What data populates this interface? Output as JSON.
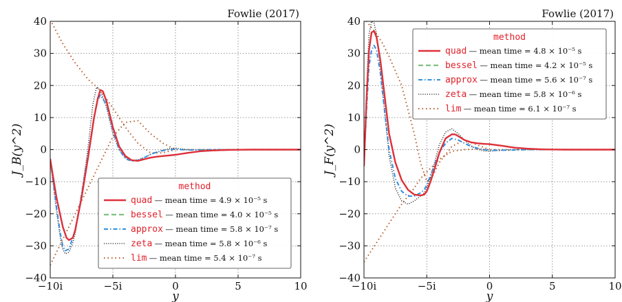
{
  "chart_data": [
    {
      "type": "line",
      "credit": "Fowlie (2017)",
      "xlabel": "y",
      "ylabel": "J_B(y^2)",
      "xlim": [
        -10,
        10
      ],
      "ylim": [
        -40,
        40
      ],
      "xtick_labels": [
        "−10i",
        "−5i",
        "0",
        "5",
        "10"
      ],
      "xtick_values": [
        -10,
        -5,
        0,
        5,
        10
      ],
      "ytick_values": [
        40,
        30,
        20,
        10,
        0,
        -10,
        -20,
        -30,
        -40
      ],
      "ytick_labels": [
        "40",
        "30",
        "20",
        "10",
        "0",
        "−10",
        "−20",
        "−30",
        "−40"
      ],
      "grid": true,
      "legend": {
        "title": "method",
        "placement": "lower-right",
        "entries": [
          {
            "name": "quad",
            "time_text": "— mean time = 4.9 × 10⁻⁵ s"
          },
          {
            "name": "bessel",
            "time_text": "— mean time = 4.0 × 10⁻⁵ s"
          },
          {
            "name": "approx",
            "time_text": "— mean time = 5.8 × 10⁻⁷ s"
          },
          {
            "name": "zeta",
            "time_text": "— mean time = 5.8 × 10⁻⁶ s"
          },
          {
            "name": "lim",
            "time_text": "— mean time = 5.4 × 10⁻⁷ s"
          }
        ]
      },
      "series": [
        {
          "name": "quad",
          "color": "#e0303a",
          "style": "solid",
          "x": [
            -10,
            -9.5,
            -9,
            -8.7,
            -8.5,
            -8.2,
            -8,
            -7.5,
            -7,
            -6.5,
            -6.2,
            -6,
            -5.8,
            -5.5,
            -5,
            -4.5,
            -4,
            -3.5,
            -3,
            -2.5,
            -2,
            -1.5,
            -1,
            -0.5,
            0,
            1,
            2,
            3,
            4,
            5,
            6,
            8,
            10
          ],
          "y": [
            -3,
            -15,
            -24,
            -27.5,
            -28.2,
            -27.5,
            -25,
            -15,
            -3,
            10,
            16,
            18.6,
            18.2,
            15,
            7,
            1,
            -2,
            -3.3,
            -3.5,
            -3,
            -2.5,
            -2.2,
            -2,
            -1.8,
            -1.6,
            -1,
            -0.5,
            -0.25,
            -0.1,
            -0.05,
            0,
            0,
            0
          ]
        },
        {
          "name": "bessel",
          "color": "#7fbf7f",
          "style": "dashed",
          "x": [
            -10,
            -9.5,
            -9,
            -8.7,
            -8.5,
            -8.2,
            -8,
            -7.5,
            -7,
            -6.5,
            -6.2,
            -6,
            -5.8,
            -5.5,
            -5,
            -4.5,
            -4,
            -3.5,
            -3,
            -2.5,
            -2,
            -1.5,
            -1,
            -0.5,
            0,
            1,
            2,
            3,
            4,
            5,
            6,
            8,
            10
          ],
          "y": [
            -3,
            -15,
            -24,
            -27.5,
            -28.2,
            -27.5,
            -25,
            -15,
            -3,
            10,
            16,
            18.6,
            18.2,
            15,
            7,
            1,
            -2,
            -3.3,
            -3.5,
            -3,
            -2.5,
            -2.2,
            -2,
            -1.8,
            -1.6,
            -1,
            -0.5,
            -0.25,
            -0.1,
            -0.05,
            0,
            0,
            0
          ]
        },
        {
          "name": "approx",
          "color": "#2f8fdf",
          "style": "dashdot",
          "x": [
            -10,
            -9.5,
            -9.2,
            -9,
            -8.8,
            -8.5,
            -8,
            -7.5,
            -7,
            -6.5,
            -6.2,
            -6,
            -5.5,
            -5,
            -4.5,
            -4,
            -3.5,
            -3,
            -2.5,
            -2,
            -1.5,
            -1,
            -0.5,
            0,
            0.5,
            1,
            2,
            3,
            5,
            7,
            10
          ],
          "y": [
            -3,
            -18,
            -26,
            -30,
            -31.5,
            -31,
            -25,
            -14,
            -2,
            10,
            15.5,
            17,
            14,
            6,
            0,
            -2.8,
            -3.6,
            -3.3,
            -2.5,
            -1.5,
            -0.8,
            -0.3,
            0,
            0.1,
            0,
            -0.1,
            -0.1,
            0,
            0,
            0,
            0
          ]
        },
        {
          "name": "zeta",
          "color": "#444444",
          "style": "dotted",
          "x": [
            -10,
            -9.5,
            -9.2,
            -9,
            -8.8,
            -8.5,
            -8.2,
            -8,
            -7.5,
            -7,
            -6.6,
            -6.3,
            -6,
            -5.5,
            -5,
            -4.5,
            -4,
            -3.5,
            -3,
            -2.5,
            -2,
            -1.5,
            -1,
            -0.5,
            0,
            0.5,
            1,
            2,
            3,
            5,
            7,
            10
          ],
          "y": [
            -3,
            -19,
            -27.5,
            -31,
            -32.5,
            -32,
            -29,
            -26,
            -14,
            0,
            14,
            19.5,
            18.5,
            13,
            5,
            0,
            -2.5,
            -3.3,
            -3.2,
            -2.5,
            -1.5,
            -0.8,
            -0.2,
            0.3,
            0.5,
            0.2,
            0,
            0,
            0,
            0,
            0,
            0
          ]
        },
        {
          "name": "lim",
          "color": "#b25a2a",
          "style": "loosedot",
          "x": [
            -10,
            -9,
            -8,
            -7,
            -6,
            -5.5,
            -5,
            -4,
            -3,
            -2,
            -1,
            0,
            1,
            2,
            3,
            5,
            7,
            10
          ],
          "y": [
            -36,
            -28,
            -20,
            -12,
            -4,
            0,
            4,
            8.5,
            9,
            5,
            2,
            0,
            0,
            0,
            0,
            0,
            0,
            0
          ],
          "x2": [
            -10,
            -9,
            -8,
            -7,
            -6,
            -5,
            -4,
            -3,
            -2,
            -1,
            0
          ],
          "y2": [
            40.5,
            33,
            27,
            22,
            18.5,
            13,
            7,
            2,
            -1,
            -1,
            0
          ]
        }
      ]
    },
    {
      "type": "line",
      "credit": "Fowlie (2017)",
      "xlabel": "y",
      "ylabel": "J_F(y^2)",
      "xlim": [
        -10,
        10
      ],
      "ylim": [
        -40,
        40
      ],
      "xtick_labels": [
        "−10i",
        "−5i",
        "0",
        "5",
        "10"
      ],
      "xtick_values": [
        -10,
        -5,
        0,
        5,
        10
      ],
      "ytick_values": [
        40,
        30,
        20,
        10,
        0,
        -10,
        -20,
        -30,
        -40
      ],
      "ytick_labels": [
        "40",
        "30",
        "20",
        "10",
        "0",
        "−10",
        "−20",
        "−30",
        "−40"
      ],
      "grid": true,
      "legend": {
        "title": "method",
        "placement": "upper-right",
        "entries": [
          {
            "name": "quad",
            "time_text": "— mean time = 4.8 × 10⁻⁵ s"
          },
          {
            "name": "bessel",
            "time_text": "— mean time = 4.2 × 10⁻⁵ s"
          },
          {
            "name": "approx",
            "time_text": "— mean time = 5.6 × 10⁻⁷ s"
          },
          {
            "name": "zeta",
            "time_text": "— mean time = 5.8 × 10⁻⁶ s"
          },
          {
            "name": "lim",
            "time_text": "— mean time = 6.1 × 10⁻⁷ s"
          }
        ]
      },
      "series": [
        {
          "name": "quad",
          "color": "#e0303a",
          "style": "solid",
          "x": [
            -10,
            -9.8,
            -9.6,
            -9.4,
            -9.2,
            -9,
            -8.7,
            -8.3,
            -8,
            -7.5,
            -7,
            -6.5,
            -6,
            -5.5,
            -5.2,
            -5,
            -4.7,
            -4.3,
            -4,
            -3.5,
            -3,
            -2.7,
            -2.5,
            -2,
            -1.5,
            -1,
            -0.5,
            0,
            1,
            2,
            3,
            4,
            5,
            6,
            8,
            10
          ],
          "y": [
            -5,
            15,
            31,
            36.5,
            37,
            35,
            28,
            15,
            5,
            -4,
            -9.5,
            -12.5,
            -14,
            -14.3,
            -14,
            -13,
            -10,
            -5,
            -1,
            3.5,
            4.8,
            4.7,
            4.2,
            3,
            2.3,
            2,
            1.8,
            1.7,
            1.2,
            0.6,
            0.3,
            0.1,
            0.05,
            0,
            0,
            0
          ]
        },
        {
          "name": "bessel",
          "color": "#7fbf7f",
          "style": "dashed",
          "x": [
            -10,
            -9.8,
            -9.6,
            -9.4,
            -9.2,
            -9,
            -8.7,
            -8.3,
            -8,
            -7.5,
            -7,
            -6.5,
            -6,
            -5.5,
            -5.2,
            -5,
            -4.7,
            -4.3,
            -4,
            -3.5,
            -3,
            -2.7,
            -2.5,
            -2,
            -1.5,
            -1,
            -0.5,
            0,
            1,
            2,
            3,
            4,
            5,
            6,
            8,
            10
          ],
          "y": [
            -5,
            15,
            31,
            36.5,
            37,
            35,
            28,
            15,
            5,
            -4,
            -9.5,
            -12.5,
            -14,
            -14.3,
            -14,
            -13,
            -10,
            -5,
            -1,
            3.5,
            4.8,
            4.7,
            4.2,
            3,
            2.3,
            2,
            1.8,
            1.7,
            1.2,
            0.6,
            0.3,
            0.1,
            0.05,
            0,
            0,
            0
          ]
        },
        {
          "name": "approx",
          "color": "#2f8fdf",
          "style": "dashdot",
          "x": [
            -10,
            -9.8,
            -9.6,
            -9.4,
            -9.2,
            -9,
            -8.7,
            -8.3,
            -8,
            -7.5,
            -7,
            -6.5,
            -6,
            -5.5,
            -5.2,
            -5,
            -4.7,
            -4.3,
            -4,
            -3.5,
            -3,
            -2.5,
            -2,
            -1.5,
            -1,
            -0.5,
            0,
            1,
            2,
            3,
            5,
            7,
            10
          ],
          "y": [
            -5,
            12,
            26,
            31,
            32.5,
            31,
            24,
            10,
            0,
            -9,
            -13,
            -14.5,
            -14.5,
            -13.5,
            -12.5,
            -11,
            -8,
            -4,
            -1,
            2,
            3.5,
            3,
            2,
            1,
            0.5,
            0,
            -0.2,
            -0.2,
            -0.1,
            0,
            0,
            0,
            0
          ]
        },
        {
          "name": "zeta",
          "color": "#444444",
          "style": "dotted",
          "x": [
            -10,
            -9.8,
            -9.6,
            -9.4,
            -9.2,
            -9,
            -8.7,
            -8.3,
            -8,
            -7.5,
            -7,
            -6.5,
            -6,
            -5.5,
            -5.2,
            -5,
            -4.7,
            -4.3,
            -4,
            -3.5,
            -3,
            -2.5,
            -2,
            -1.5,
            -1,
            -0.5,
            0,
            1,
            2,
            3,
            5,
            7,
            10
          ],
          "y": [
            -5,
            18,
            36,
            40,
            39.5,
            36,
            26,
            10,
            -2,
            -12,
            -16,
            -17,
            -16,
            -14.5,
            -13.5,
            -12,
            -8.5,
            -3,
            1.5,
            5.5,
            6.5,
            5,
            3,
            1.2,
            0.2,
            -0.4,
            -0.5,
            -0.2,
            0,
            0,
            0,
            0,
            0
          ]
        },
        {
          "name": "lim",
          "color": "#b25a2a",
          "style": "loosedot",
          "x": [
            -10,
            -9,
            -8,
            -7,
            -6,
            -5.5,
            -5,
            -4.5,
            -4,
            -3,
            -2,
            -1,
            0,
            1,
            2,
            3,
            5,
            7,
            10
          ],
          "y": [
            -35,
            -29,
            -23,
            -17,
            -12,
            -9,
            -7,
            -5,
            -3,
            -0.5,
            0,
            0.2,
            0,
            0,
            0,
            0,
            0,
            0,
            0
          ],
          "x2": [
            -10,
            -9.5,
            -9,
            -8.5,
            -8,
            -7,
            -6,
            -5.5,
            -5,
            -4.5,
            -4,
            -3,
            -2,
            -1,
            0
          ],
          "y2": [
            41,
            38.5,
            36,
            33,
            29,
            20,
            5,
            -4,
            -10,
            -8,
            -4,
            1,
            3,
            1.5,
            0
          ]
        }
      ]
    }
  ]
}
